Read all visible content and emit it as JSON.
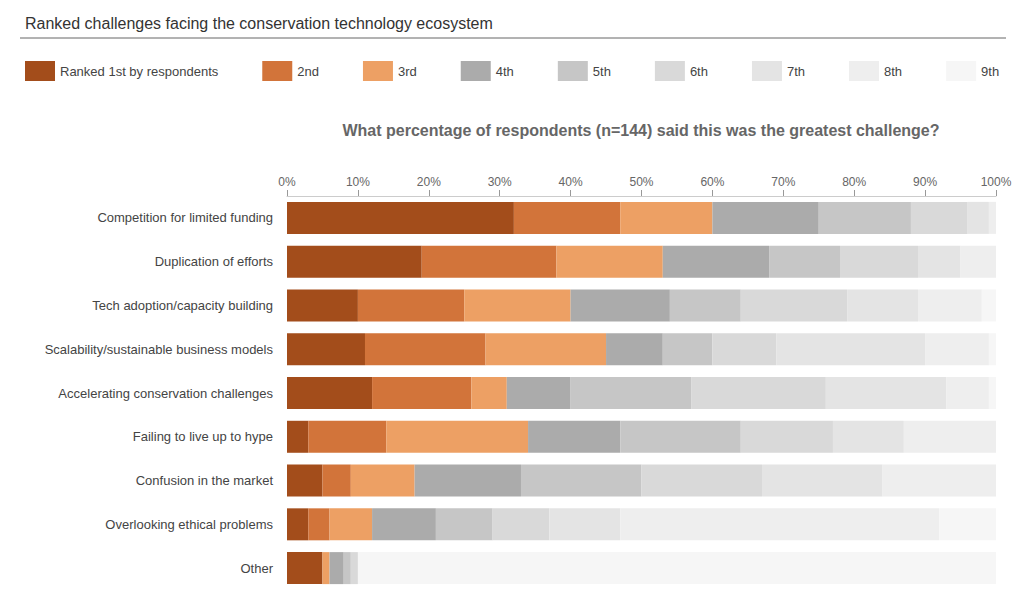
{
  "chart_data": {
    "type": "bar",
    "title": "Ranked challenges facing the conservation technology ecosystem",
    "subtitle": "What percentage of respondents (n=144) said this was the greatest challenge?",
    "orientation": "horizontal",
    "stacked": true,
    "grid": false,
    "legend": "top-left",
    "categories": [
      "Competition for limited funding",
      "Duplication of efforts",
      "Tech adoption/capacity building",
      "Scalability/sustainable business models",
      "Accelerating conservation challenges",
      "Failing to live up to hype",
      "Confusion in the market",
      "Overlooking ethical problems",
      "Other"
    ],
    "series": [
      {
        "name": "Ranked 1st by respondents",
        "color": "#a34d1b",
        "values": [
          32,
          19,
          10,
          11,
          12,
          3,
          5,
          3,
          5
        ]
      },
      {
        "name": "2nd",
        "color": "#d2743a",
        "values": [
          15,
          19,
          15,
          17,
          14,
          11,
          4,
          3,
          0
        ]
      },
      {
        "name": "3rd",
        "color": "#eda064",
        "values": [
          13,
          15,
          15,
          17,
          5,
          20,
          9,
          6,
          1
        ]
      },
      {
        "name": "4th",
        "color": "#ababab",
        "values": [
          15,
          15,
          14,
          8,
          9,
          13,
          15,
          9,
          2
        ]
      },
      {
        "name": "5th",
        "color": "#c6c6c6",
        "values": [
          13,
          10,
          10,
          7,
          17,
          17,
          17,
          8,
          1
        ]
      },
      {
        "name": "6th",
        "color": "#d9d9d9",
        "values": [
          8,
          11,
          15,
          9,
          19,
          13,
          17,
          8,
          1
        ]
      },
      {
        "name": "7th",
        "color": "#e4e4e4",
        "values": [
          3,
          6,
          10,
          21,
          17,
          10,
          17,
          10,
          0
        ]
      },
      {
        "name": "8th",
        "color": "#eeeeee",
        "values": [
          1,
          5,
          9,
          9,
          6,
          13,
          16,
          45,
          0
        ]
      },
      {
        "name": "9th",
        "color": "#f6f6f6",
        "values": [
          0,
          0,
          2,
          1,
          1,
          0,
          0,
          8,
          90
        ]
      }
    ],
    "xlim": [
      0,
      100
    ],
    "xticks": [
      {
        "value": 0,
        "label": "0%"
      },
      {
        "value": 10,
        "label": "10%"
      },
      {
        "value": 20,
        "label": "20%"
      },
      {
        "value": 30,
        "label": "30%"
      },
      {
        "value": 40,
        "label": "40%"
      },
      {
        "value": 50,
        "label": "50%"
      },
      {
        "value": 60,
        "label": "60%"
      },
      {
        "value": 70,
        "label": "70%"
      },
      {
        "value": 80,
        "label": "80%"
      },
      {
        "value": 90,
        "label": "90%"
      },
      {
        "value": 100,
        "label": "100%"
      }
    ]
  }
}
